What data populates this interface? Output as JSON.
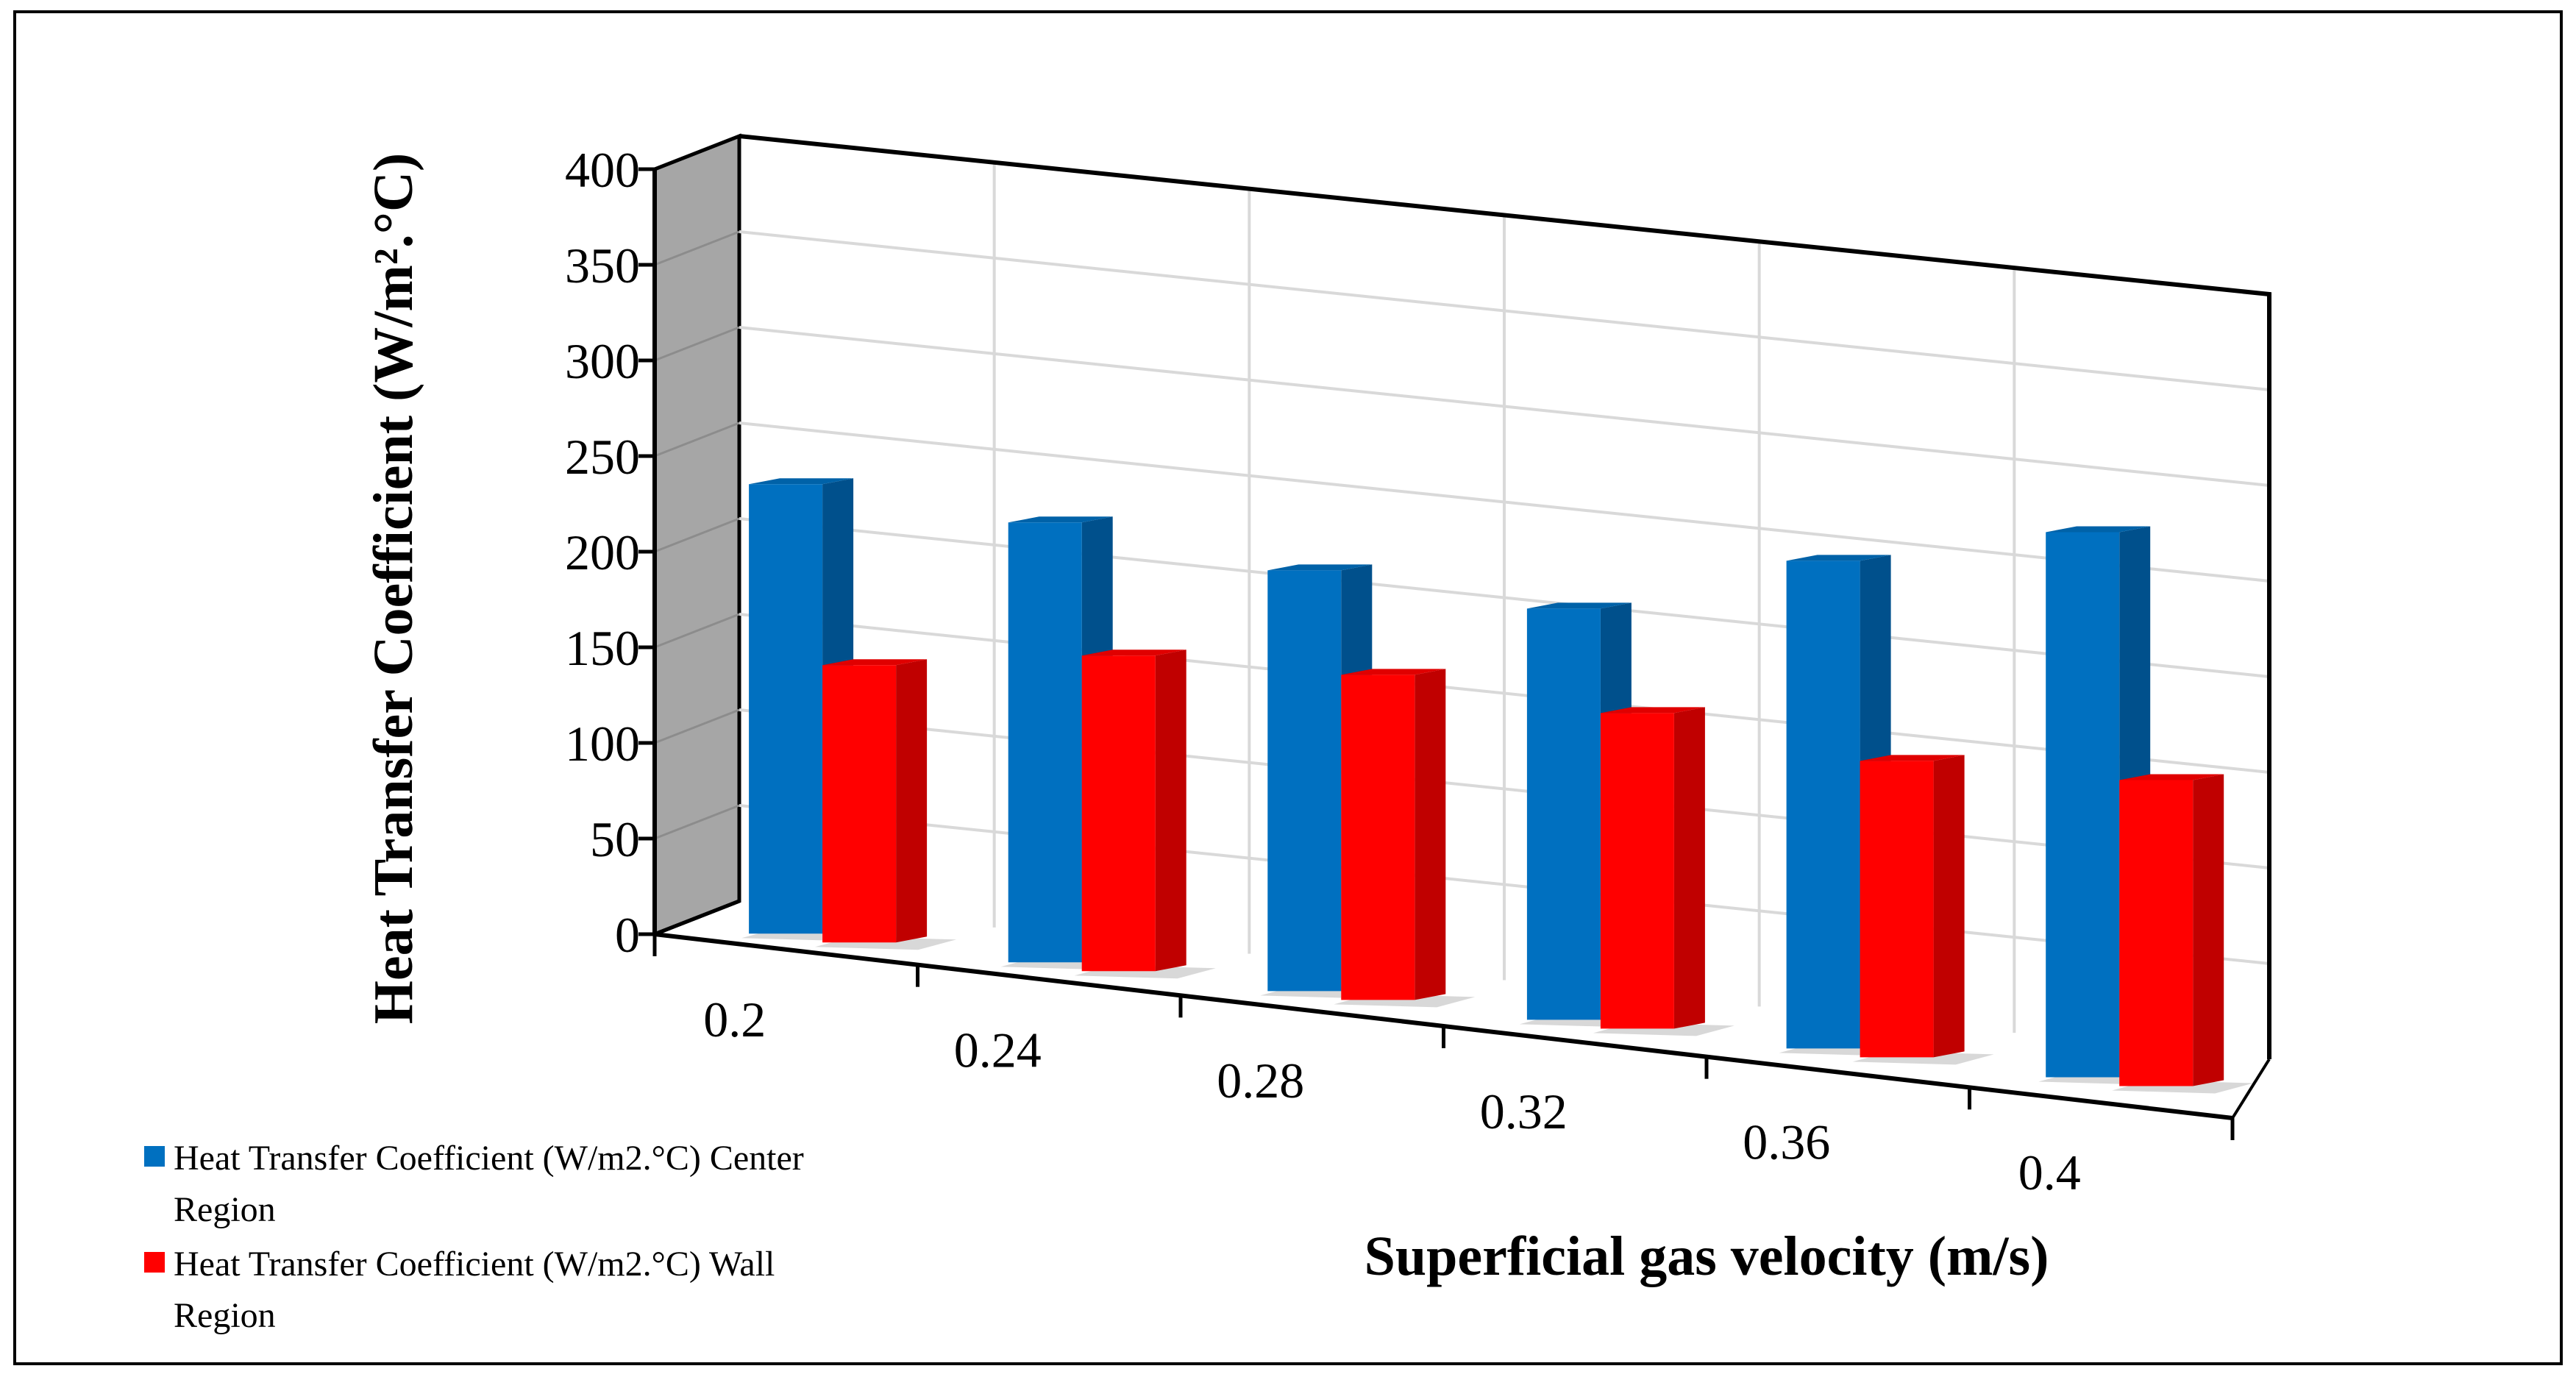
{
  "chart_data": {
    "type": "bar",
    "variant": "3d-clustered-column",
    "categories": [
      "0.2",
      "0.24",
      "0.28",
      "0.32",
      "0.36",
      "0.4"
    ],
    "series": [
      {
        "name": "Heat Transfer Coefficient (W/m2.°C) Center Region",
        "legend_lines": [
          "Heat Transfer Coefficient (W/m2.°C) Center",
          "Region"
        ],
        "color": "#0070C0",
        "side_color": "#00508C",
        "top_color": "#0062A8",
        "values": [
          235,
          230,
          220,
          215,
          255,
          285
        ]
      },
      {
        "name": "Heat Transfer Coefficient (W/m2.°C) Wall Region",
        "legend_lines": [
          "Heat Transfer Coefficient (W/m2.°C) Wall",
          "Region"
        ],
        "color": "#FF0000",
        "side_color": "#C00000",
        "top_color": "#E00000",
        "values": [
          145,
          165,
          170,
          165,
          155,
          160
        ]
      }
    ],
    "xlabel": "Superficial gas velocity (m/s)",
    "ylabel": "Heat Transfer Coefficient (W/m².°C)",
    "ylim": [
      0,
      400
    ],
    "yticks": [
      "0",
      "50",
      "100",
      "150",
      "200",
      "250",
      "300",
      "350",
      "400"
    ],
    "grid": true,
    "legend_position": "bottom-left",
    "colors": {
      "side_wall": "#A6A6A6",
      "grid": "#D9D9D9",
      "axis": "#000000",
      "floor_shadow": "#C8C8C8"
    }
  }
}
